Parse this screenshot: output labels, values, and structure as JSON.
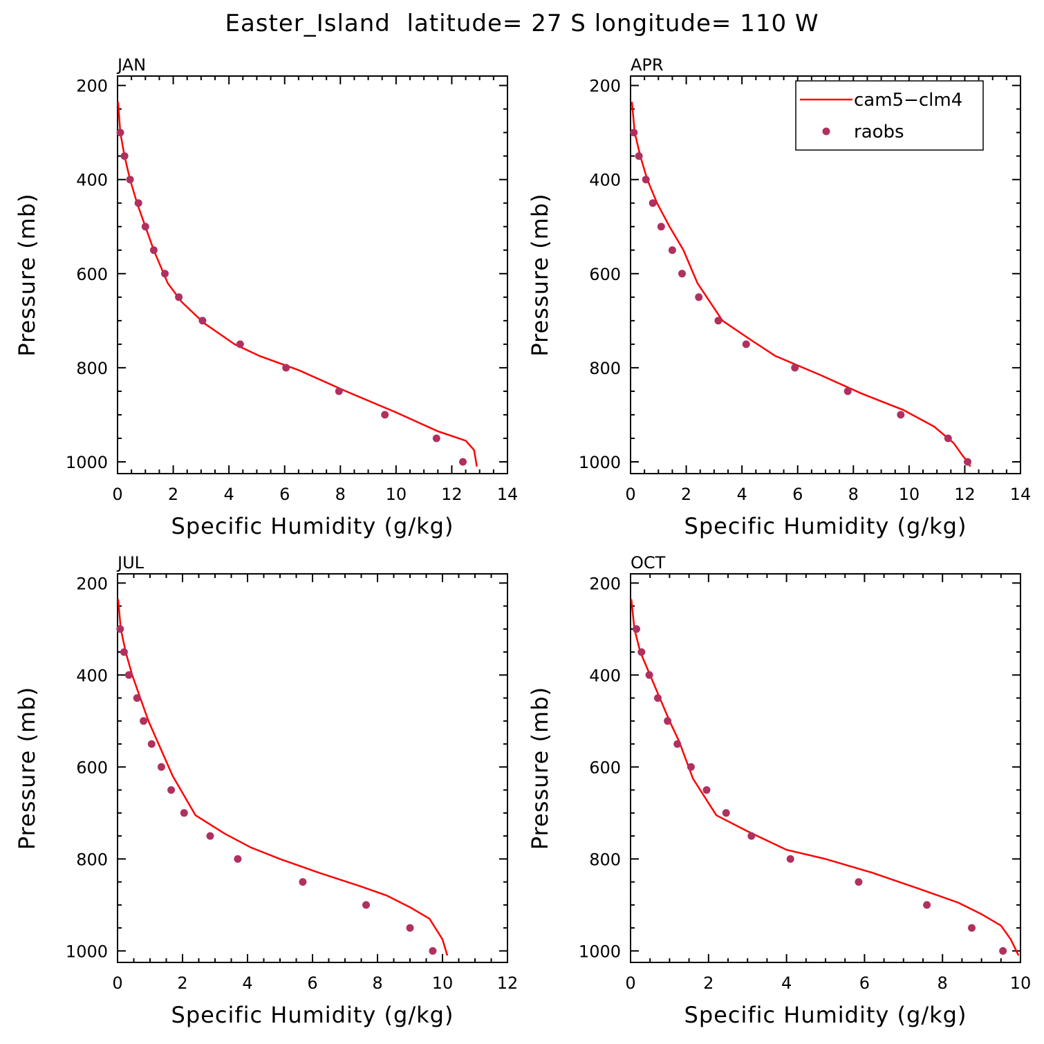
{
  "figure_title": "Easter_Island  latitude= 27 S longitude= 110 W",
  "legend": {
    "model": "cam5−clm4",
    "obs": "raobs"
  },
  "colors": {
    "model_line": "#ff0000",
    "obs_points": "#b03060",
    "axes": "#000000"
  },
  "chart_data": [
    {
      "type": "line",
      "panel_label": "JAN",
      "xlabel": "Specific Humidity (g/kg)",
      "ylabel": "Pressure (mb)",
      "xlim": [
        0,
        14
      ],
      "ylim": [
        180,
        1025
      ],
      "y_inverted": true,
      "xticks": [
        "0",
        "2",
        "4",
        "6",
        "8",
        "10",
        "12",
        "14"
      ],
      "yticks": [
        "200",
        "400",
        "600",
        "800",
        "1000"
      ],
      "series": [
        {
          "name": "cam5−clm4",
          "kind": "line",
          "x": [
            0.02,
            0.1,
            0.25,
            0.45,
            0.7,
            1.0,
            1.3,
            1.8,
            2.3,
            3.1,
            4.2,
            5.1,
            6.5,
            8.2,
            10.0,
            11.5,
            12.5,
            12.8,
            12.9
          ],
          "y": [
            235,
            300,
            350,
            400,
            450,
            500,
            550,
            620,
            660,
            705,
            750,
            775,
            805,
            850,
            895,
            935,
            955,
            975,
            1010
          ]
        },
        {
          "name": "raobs",
          "kind": "scatter",
          "x": [
            0.1,
            0.25,
            0.45,
            0.75,
            1.0,
            1.3,
            1.7,
            2.2,
            3.05,
            4.4,
            6.05,
            7.95,
            9.6,
            11.45,
            12.4
          ],
          "y": [
            300,
            350,
            400,
            450,
            500,
            550,
            600,
            650,
            700,
            750,
            800,
            850,
            900,
            950,
            1000
          ]
        }
      ]
    },
    {
      "type": "line",
      "panel_label": "APR",
      "xlabel": "Specific Humidity (g/kg)",
      "ylabel": "Pressure (mb)",
      "xlim": [
        0,
        14
      ],
      "ylim": [
        180,
        1025
      ],
      "y_inverted": true,
      "xticks": [
        "0",
        "2",
        "4",
        "6",
        "8",
        "10",
        "12",
        "14"
      ],
      "yticks": [
        "200",
        "400",
        "600",
        "800",
        "1000"
      ],
      "series": [
        {
          "name": "cam5−clm4",
          "kind": "line",
          "x": [
            0.05,
            0.15,
            0.35,
            0.6,
            0.95,
            1.4,
            1.9,
            2.4,
            3.3,
            4.3,
            5.2,
            6.8,
            8.3,
            9.8,
            10.9,
            11.6,
            11.9,
            12.1,
            12.2
          ],
          "y": [
            235,
            300,
            350,
            400,
            450,
            500,
            550,
            620,
            700,
            740,
            775,
            815,
            855,
            890,
            925,
            960,
            985,
            1000,
            1010
          ]
        },
        {
          "name": "raobs",
          "kind": "scatter",
          "x": [
            0.12,
            0.3,
            0.55,
            0.8,
            1.1,
            1.5,
            1.85,
            2.45,
            3.15,
            4.15,
            5.9,
            7.8,
            9.7,
            11.4,
            12.1
          ],
          "y": [
            300,
            350,
            400,
            450,
            500,
            550,
            600,
            650,
            700,
            750,
            800,
            850,
            900,
            950,
            1000
          ]
        }
      ]
    },
    {
      "type": "line",
      "panel_label": "JUL",
      "xlabel": "Specific Humidity (g/kg)",
      "ylabel": "Pressure (mb)",
      "xlim": [
        0,
        12
      ],
      "ylim": [
        180,
        1025
      ],
      "y_inverted": true,
      "xticks": [
        "0",
        "2",
        "4",
        "6",
        "8",
        "10",
        "12"
      ],
      "yticks": [
        "200",
        "400",
        "600",
        "800",
        "1000"
      ],
      "series": [
        {
          "name": "cam5−clm4",
          "kind": "line",
          "x": [
            0.02,
            0.1,
            0.25,
            0.45,
            0.7,
            0.95,
            1.2,
            1.7,
            2.4,
            3.3,
            4.1,
            5.0,
            6.2,
            7.5,
            8.3,
            9.0,
            9.6,
            10.0,
            10.15
          ],
          "y": [
            235,
            300,
            350,
            400,
            450,
            500,
            540,
            620,
            705,
            745,
            775,
            800,
            830,
            860,
            880,
            905,
            930,
            975,
            1010
          ]
        },
        {
          "name": "raobs",
          "kind": "scatter",
          "x": [
            0.08,
            0.2,
            0.35,
            0.6,
            0.8,
            1.05,
            1.35,
            1.65,
            2.05,
            2.85,
            3.7,
            5.7,
            7.65,
            9.0,
            9.7
          ],
          "y": [
            300,
            350,
            400,
            450,
            500,
            550,
            600,
            650,
            700,
            750,
            800,
            850,
            900,
            950,
            1000
          ]
        }
      ]
    },
    {
      "type": "line",
      "panel_label": "OCT",
      "xlabel": "Specific Humidity (g/kg)",
      "ylabel": "Pressure (mb)",
      "xlim": [
        0,
        10
      ],
      "ylim": [
        180,
        1025
      ],
      "y_inverted": true,
      "xticks": [
        "0",
        "2",
        "4",
        "6",
        "8",
        "10"
      ],
      "yticks": [
        "200",
        "400",
        "600",
        "800",
        "1000"
      ],
      "series": [
        {
          "name": "cam5−clm4",
          "kind": "line",
          "x": [
            0.02,
            0.1,
            0.25,
            0.5,
            0.75,
            1.0,
            1.25,
            1.6,
            2.2,
            3.0,
            4.0,
            5.0,
            6.2,
            7.4,
            8.4,
            9.0,
            9.5,
            9.75,
            9.95
          ],
          "y": [
            235,
            300,
            350,
            400,
            450,
            500,
            545,
            625,
            705,
            740,
            780,
            800,
            830,
            865,
            895,
            920,
            945,
            975,
            1010
          ]
        },
        {
          "name": "raobs",
          "kind": "scatter",
          "x": [
            0.15,
            0.28,
            0.48,
            0.7,
            0.95,
            1.2,
            1.55,
            1.95,
            2.45,
            3.1,
            4.1,
            5.85,
            7.6,
            8.75,
            9.55
          ],
          "y": [
            300,
            350,
            400,
            450,
            500,
            550,
            600,
            650,
            700,
            750,
            800,
            850,
            900,
            950,
            1000
          ]
        }
      ]
    }
  ]
}
